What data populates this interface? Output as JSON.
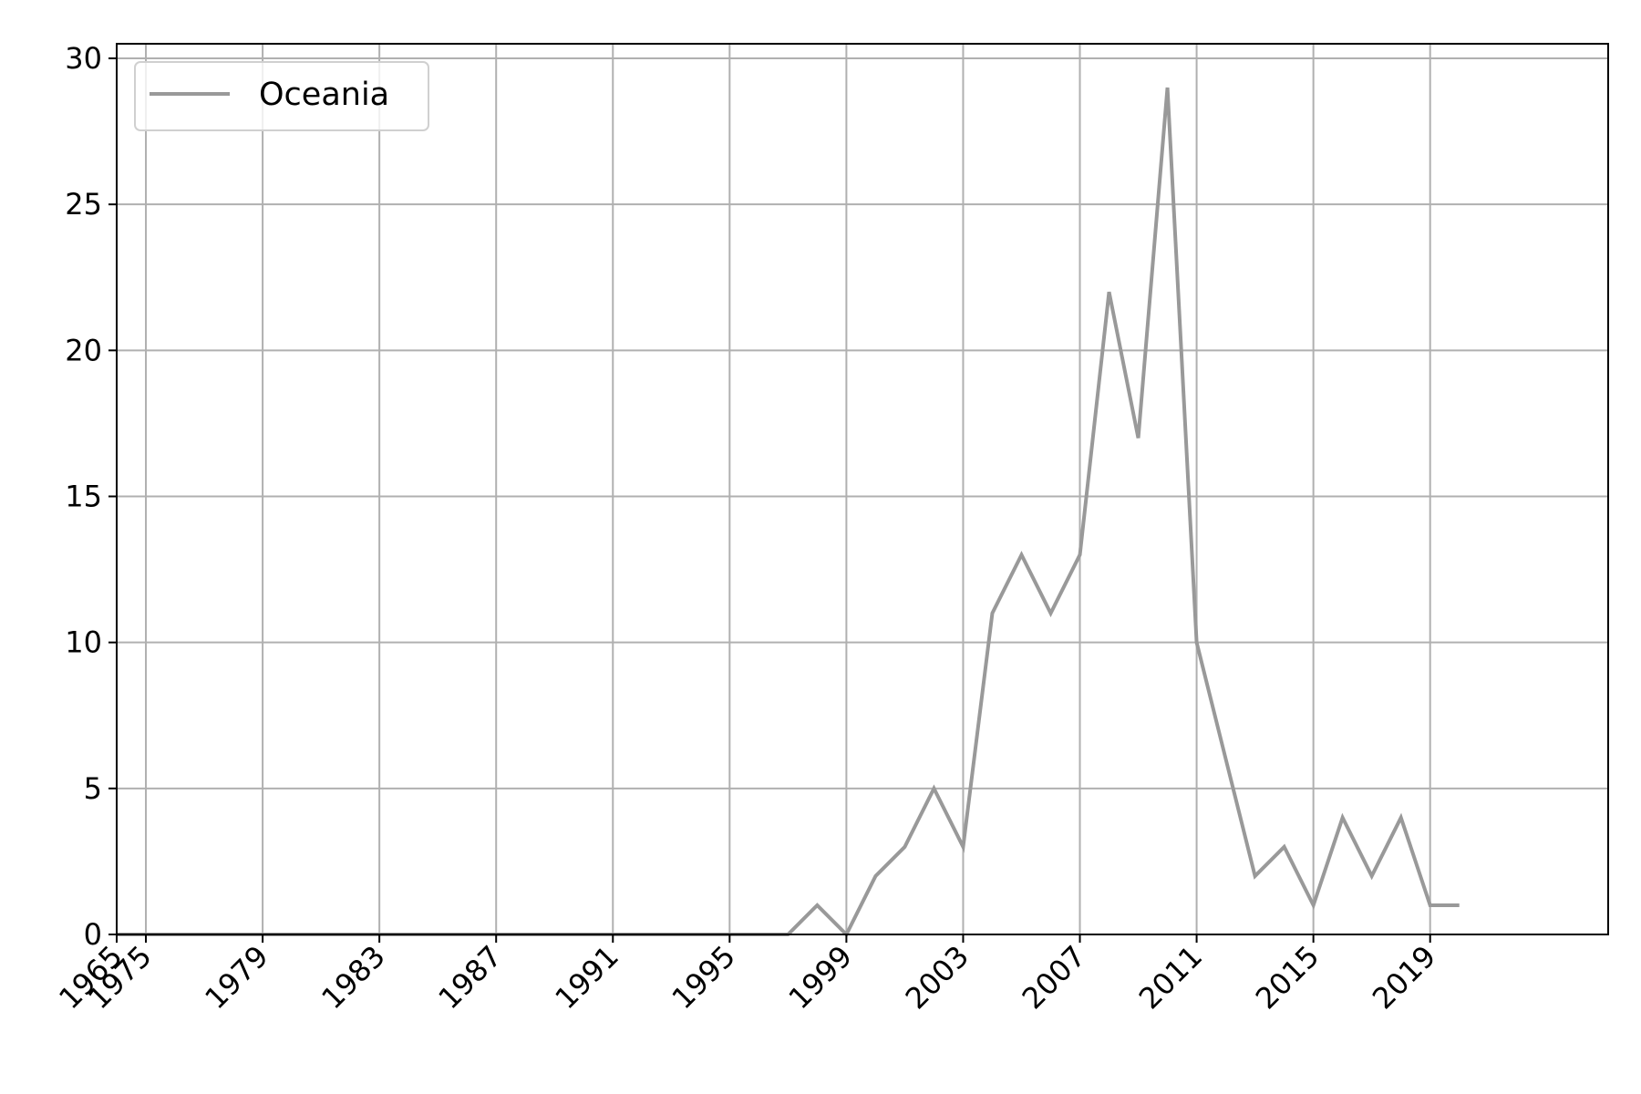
{
  "chart_data": {
    "type": "line",
    "title": "",
    "xlabel": "",
    "ylabel": "",
    "x": [
      "1965",
      "1975",
      "1976",
      "1977",
      "1978",
      "1979",
      "1980",
      "1981",
      "1982",
      "1983",
      "1984",
      "1985",
      "1986",
      "1987",
      "1988",
      "1989",
      "1990",
      "1991",
      "1992",
      "1993",
      "1994",
      "1995",
      "1996",
      "1997",
      "1998",
      "1999",
      "2000",
      "2001",
      "2002",
      "2003",
      "2004",
      "2005",
      "2006",
      "2007",
      "2008",
      "2009",
      "2010",
      "2011",
      "2012",
      "2013",
      "2014",
      "2015",
      "2016",
      "2017",
      "2018",
      "2019",
      "2020"
    ],
    "x_tick_labels": [
      "1965",
      "1975",
      "1979",
      "1983",
      "1987",
      "1991",
      "1995",
      "1999",
      "2003",
      "2007",
      "2011",
      "2015",
      "2019"
    ],
    "y_ticks": [
      0,
      5,
      10,
      15,
      20,
      25,
      30
    ],
    "ylim": [
      0,
      30.5
    ],
    "grid": true,
    "legend_position": "upper-left",
    "series": [
      {
        "name": "Oceania",
        "color": "#999999",
        "values": [
          0,
          0,
          0,
          0,
          0,
          0,
          0,
          0,
          0,
          0,
          0,
          0,
          0,
          0,
          0,
          0,
          0,
          0,
          0,
          0,
          0,
          0,
          0,
          0,
          1,
          0,
          2,
          3,
          5,
          3,
          11,
          13,
          11,
          13,
          22,
          17,
          29,
          10,
          6,
          2,
          3,
          1,
          4,
          2,
          4,
          1,
          1
        ]
      }
    ]
  }
}
